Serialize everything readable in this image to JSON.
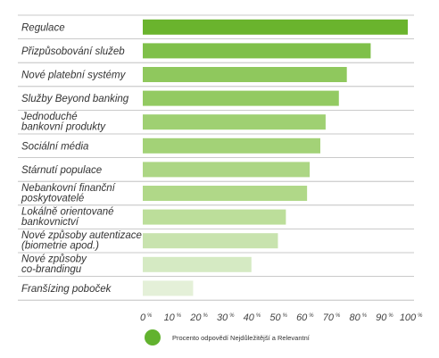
{
  "chart_data": {
    "type": "bar",
    "orientation": "horizontal",
    "categories": [
      [
        "Regulace"
      ],
      [
        "Přizpůsobování služeb"
      ],
      [
        "Nové platební systémy"
      ],
      [
        "Služby Beyond banking"
      ],
      [
        "Jednoduché",
        "bankovní produkty"
      ],
      [
        "Sociální média"
      ],
      [
        "Stárnutí populace"
      ],
      [
        "Nebankovní finanční",
        "poskytovatelé"
      ],
      [
        "Lokálně orientované",
        "bankovnictví"
      ],
      [
        "Nové způsoby autentizace",
        "(biometrie apod.)"
      ],
      [
        "Nové způsoby",
        "co-brandingu"
      ],
      [
        "Franšízing poboček"
      ]
    ],
    "series": [
      {
        "name": "Procento odpovědí Nejdůležitější a Relevantní",
        "values": [
          100,
          86,
          77,
          74,
          69,
          67,
          63,
          62,
          54,
          51,
          41,
          19
        ]
      }
    ],
    "xlim": [
      0,
      100
    ],
    "xticks": [
      "0",
      "10",
      "20",
      "30",
      "40",
      "50",
      "60",
      "70",
      "80",
      "90",
      "100"
    ],
    "tick_suffix": "%",
    "legend_position": "bottom",
    "colors": {
      "bar_gradient": [
        "#6ab42d",
        "#7fc049",
        "#8fc85d",
        "#93ca62",
        "#9fd072",
        "#a3d277",
        "#acd684",
        "#b0d888",
        "#bcde9a",
        "#c8e3ae",
        "#d5eac3",
        "#e4f0d8"
      ],
      "legend_marker": "#62b22f",
      "separator": "#b8b8b8"
    }
  }
}
